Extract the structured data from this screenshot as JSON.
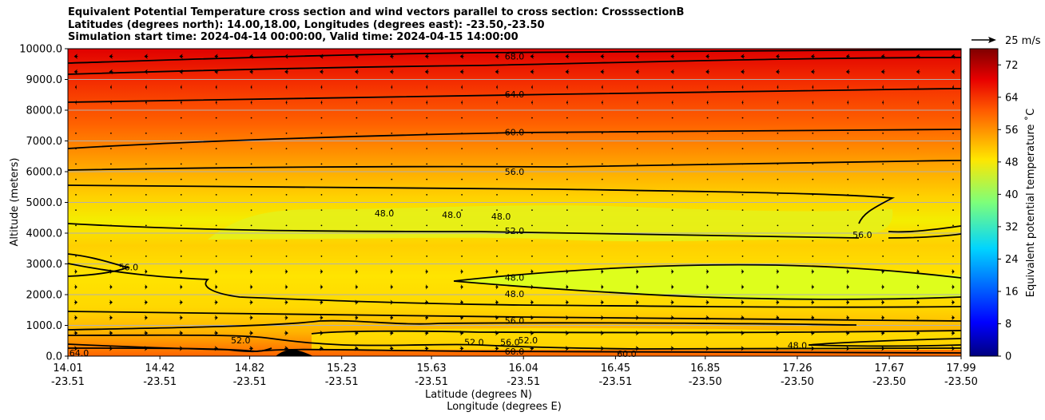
{
  "title": {
    "line1": "Equivalent Potential Temperature cross section and wind vectors parallel to cross section: CrosssectionB",
    "line2": "Latitudes (degrees north): 14.00,18.00, Longitudes (degrees east): -23.50,-23.50",
    "line3": "Simulation start time: 2024-04-14 00:00:00, Valid time: 2024-04-15 14:00:00"
  },
  "chart_data": {
    "type": "heatmap",
    "subtype": "filled contour cross section with wind vectors",
    "ylabel": "Altitude (meters)",
    "xlabel_line1": "Latitude (degrees N)",
    "xlabel_line2": "Longitude (degrees E)",
    "ylim": [
      0,
      10000
    ],
    "xlim": [
      14.01,
      17.99
    ],
    "yticks": [
      "0.0",
      "1000.0",
      "2000.0",
      "3000.0",
      "4000.0",
      "5000.0",
      "6000.0",
      "7000.0",
      "8000.0",
      "9000.0",
      "10000.0"
    ],
    "ytick_values": [
      0,
      1000,
      2000,
      3000,
      4000,
      5000,
      6000,
      7000,
      8000,
      9000,
      10000
    ],
    "xticks": [
      {
        "lat": "14.01",
        "lon": "-23.51",
        "value": 14.01
      },
      {
        "lat": "14.42",
        "lon": "-23.51",
        "value": 14.42
      },
      {
        "lat": "14.82",
        "lon": "-23.51",
        "value": 14.82
      },
      {
        "lat": "15.23",
        "lon": "-23.51",
        "value": 15.23
      },
      {
        "lat": "15.63",
        "lon": "-23.51",
        "value": 15.63
      },
      {
        "lat": "16.04",
        "lon": "-23.51",
        "value": 16.04
      },
      {
        "lat": "16.45",
        "lon": "-23.51",
        "value": 16.45
      },
      {
        "lat": "16.85",
        "lon": "-23.50",
        "value": 16.85
      },
      {
        "lat": "17.26",
        "lon": "-23.50",
        "value": 17.26
      },
      {
        "lat": "17.67",
        "lon": "-23.50",
        "value": 17.67
      },
      {
        "lat": "17.99",
        "lon": "-23.50",
        "value": 17.99
      }
    ],
    "grid": "horizontal",
    "colorbar": {
      "label": "Equivalent potential temperature ˚C",
      "ticks": [
        "0",
        "8",
        "16",
        "24",
        "32",
        "40",
        "48",
        "56",
        "64",
        "72"
      ],
      "range": [
        0,
        76
      ],
      "colormap": "jet"
    },
    "quiver_key": {
      "label": "25 m/s",
      "speed": 25
    },
    "contour_labels": [
      {
        "text": "68.0",
        "x": 16.0,
        "y": 9750
      },
      {
        "text": "64.0",
        "x": 16.0,
        "y": 8520
      },
      {
        "text": "60.0",
        "x": 16.0,
        "y": 7280
      },
      {
        "text": "56.0",
        "x": 16.0,
        "y": 6000
      },
      {
        "text": "48.0",
        "x": 15.42,
        "y": 4650
      },
      {
        "text": "48.0",
        "x": 15.72,
        "y": 4600
      },
      {
        "text": "48.0",
        "x": 15.94,
        "y": 4550
      },
      {
        "text": "52.0",
        "x": 16.0,
        "y": 4080
      },
      {
        "text": "56.0",
        "x": 17.55,
        "y": 3950
      },
      {
        "text": "56.0",
        "x": 14.28,
        "y": 2900
      },
      {
        "text": "48.0",
        "x": 16.0,
        "y": 2560
      },
      {
        "text": "48.0",
        "x": 16.0,
        "y": 2020
      },
      {
        "text": "56.0",
        "x": 16.0,
        "y": 1150
      },
      {
        "text": "52.0",
        "x": 14.78,
        "y": 520
      },
      {
        "text": "52.0",
        "x": 15.82,
        "y": 450
      },
      {
        "text": "52.0",
        "x": 16.06,
        "y": 520
      },
      {
        "text": "56.0",
        "x": 15.98,
        "y": 460
      },
      {
        "text": "60.0",
        "x": 16.0,
        "y": 160
      },
      {
        "text": "60.0",
        "x": 16.5,
        "y": 80
      },
      {
        "text": "48.0",
        "x": 17.26,
        "y": 350
      },
      {
        "text": "64.0",
        "x": 14.06,
        "y": 100
      }
    ],
    "wind_profile": [
      {
        "y": 9500,
        "u": -7
      },
      {
        "y": 8500,
        "u": -3
      },
      {
        "y": 7500,
        "u": -1
      },
      {
        "y": 6500,
        "u": -0.5
      },
      {
        "y": 5500,
        "u": 0
      },
      {
        "y": 4500,
        "u": 0.5
      },
      {
        "y": 3500,
        "u": 2
      },
      {
        "y": 2500,
        "u": 5
      },
      {
        "y": 1500,
        "u": 6
      },
      {
        "y": 500,
        "u": 7
      }
    ]
  }
}
